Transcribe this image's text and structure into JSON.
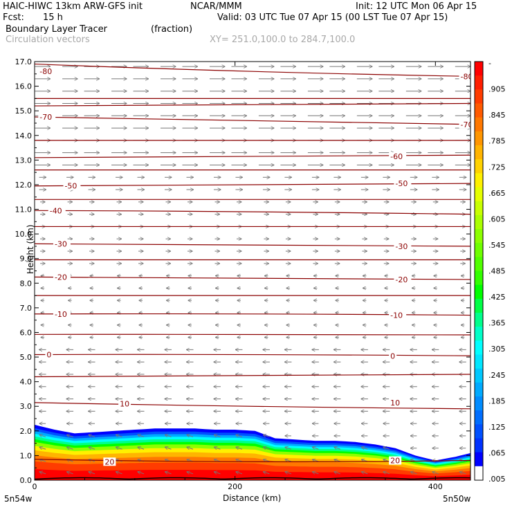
{
  "header": {
    "model": "HAIC-HIWC 13km ARW-GFS init",
    "org": "NCAR/MMM",
    "init": "Init: 12 UTC Mon 06 Apr 15",
    "fcst_label": "Fcst:",
    "fcst_value": "15 h",
    "valid": "Valid: 03 UTC Tue 07 Apr 15 (00 LST Tue 07 Apr 15)",
    "field": "Boundary Layer Tracer",
    "field_units": "(fraction)",
    "vectors": "Circulation vectors",
    "xy": "XY= 251.0,100.0 to 284.7,100.0"
  },
  "chart_data": {
    "type": "heatmap",
    "title": "Boundary Layer Tracer",
    "xlabel": "Distance (km)",
    "ylabel": "Height (km)",
    "xlim": [
      0,
      435
    ],
    "ylim": [
      0,
      17
    ],
    "x_ticks": [
      {
        "v": 0,
        "label": "0"
      },
      {
        "v": 200,
        "label": "200"
      },
      {
        "v": 400,
        "label": "400"
      }
    ],
    "x_end_labels": {
      "left": "5n54w",
      "right": "5n50w"
    },
    "y_ticks": [
      {
        "v": 0,
        "label": "0.0"
      },
      {
        "v": 1,
        "label": "1.0"
      },
      {
        "v": 2,
        "label": "2.0"
      },
      {
        "v": 3,
        "label": "3.0"
      },
      {
        "v": 4,
        "label": "4.0"
      },
      {
        "v": 5,
        "label": "5.0"
      },
      {
        "v": 6,
        "label": "6.0"
      },
      {
        "v": 7,
        "label": "7.0"
      },
      {
        "v": 8,
        "label": "8.0"
      },
      {
        "v": 9,
        "label": "9.0"
      },
      {
        "v": 10,
        "label": "10.0"
      },
      {
        "v": 11,
        "label": "11.0"
      },
      {
        "v": 12,
        "label": "12.0"
      },
      {
        "v": 13,
        "label": "13.0"
      },
      {
        "v": 14,
        "label": "14.0"
      },
      {
        "v": 15,
        "label": "15.0"
      },
      {
        "v": 16,
        "label": "16.0"
      },
      {
        "v": 17,
        "label": "17.0"
      }
    ],
    "colorbar": {
      "labels": [
        "-",
        ".905",
        ".845",
        ".785",
        ".725",
        ".665",
        ".605",
        ".545",
        ".485",
        ".425",
        ".365",
        ".305",
        ".245",
        ".185",
        ".125",
        ".065",
        ".005"
      ],
      "colors": [
        "#ff0000",
        "#ff1e00",
        "#ff3c00",
        "#ff5a00",
        "#ff7800",
        "#ff9600",
        "#ffb400",
        "#ffd200",
        "#fff000",
        "#e6ff00",
        "#c8ff00",
        "#aaff00",
        "#8cff00",
        "#6eff00",
        "#50ff00",
        "#32ff00",
        "#00ff00",
        "#00ff46",
        "#00ff8c",
        "#00ffc8",
        "#00ffff",
        "#00e6ff",
        "#00c8ff",
        "#00aaff",
        "#008cff",
        "#006eff",
        "#0050ff",
        "#0032ff",
        "#0000ff",
        "#ffffff"
      ]
    },
    "tracer_top_km": {
      "x": [
        0,
        20,
        40,
        60,
        80,
        100,
        120,
        140,
        160,
        180,
        200,
        220,
        240,
        260,
        280,
        300,
        320,
        340,
        360,
        380,
        400,
        420,
        435
      ],
      "y": [
        2.25,
        2.05,
        1.9,
        1.95,
        2.0,
        2.05,
        2.1,
        2.1,
        2.1,
        2.05,
        2.05,
        2.0,
        1.7,
        1.65,
        1.6,
        1.6,
        1.55,
        1.45,
        1.3,
        1.0,
        0.8,
        0.95,
        1.1
      ]
    },
    "isotherms": [
      {
        "label": "-80",
        "km": [
          16.9,
          16.6,
          16.4
        ],
        "label_at": [
          [
            5,
            16.6
          ],
          [
            425,
            16.4
          ]
        ]
      },
      {
        "label": "",
        "km": [
          15.5,
          15.5,
          15.5
        ],
        "label_at": []
      },
      {
        "label": "",
        "km": [
          15.2,
          15.25,
          15.3
        ],
        "label_at": []
      },
      {
        "label": "-70",
        "km": [
          14.75,
          14.6,
          14.45
        ],
        "label_at": [
          [
            5,
            14.75
          ],
          [
            425,
            14.45
          ]
        ]
      },
      {
        "label": "",
        "km": [
          13.8,
          13.8,
          13.8
        ],
        "label_at": []
      },
      {
        "label": "-60",
        "km": [
          13.1,
          13.15,
          13.2
        ],
        "label_at": [
          [
            355,
            13.15
          ]
        ]
      },
      {
        "label": "",
        "km": [
          12.6,
          12.6,
          12.6
        ],
        "label_at": []
      },
      {
        "label": "-50",
        "km": [
          11.95,
          12.0,
          12.05
        ],
        "label_at": [
          [
            30,
            11.95
          ],
          [
            360,
            12.05
          ]
        ]
      },
      {
        "label": "",
        "km": [
          11.4,
          11.4,
          11.4
        ],
        "label_at": []
      },
      {
        "label": "-40",
        "km": [
          10.95,
          10.9,
          10.8
        ],
        "label_at": [
          [
            15,
            10.95
          ]
        ]
      },
      {
        "label": "",
        "km": [
          10.3,
          10.3,
          10.3
        ],
        "label_at": []
      },
      {
        "label": "-30",
        "km": [
          9.6,
          9.55,
          9.5
        ],
        "label_at": [
          [
            20,
            9.6
          ],
          [
            360,
            9.5
          ]
        ]
      },
      {
        "label": "",
        "km": [
          8.95,
          8.95,
          8.95
        ],
        "label_at": []
      },
      {
        "label": "-20",
        "km": [
          8.25,
          8.2,
          8.15
        ],
        "label_at": [
          [
            20,
            8.25
          ],
          [
            360,
            8.15
          ]
        ]
      },
      {
        "label": "",
        "km": [
          7.5,
          7.5,
          7.5
        ],
        "label_at": []
      },
      {
        "label": "-10",
        "km": [
          6.75,
          6.75,
          6.7
        ],
        "label_at": [
          [
            20,
            6.75
          ],
          [
            355,
            6.7
          ]
        ]
      },
      {
        "label": "",
        "km": [
          5.92,
          5.92,
          5.9
        ],
        "label_at": []
      },
      {
        "label": "0",
        "km": [
          5.1,
          5.1,
          5.05
        ],
        "label_at": [
          [
            12,
            5.1
          ],
          [
            355,
            5.05
          ]
        ]
      },
      {
        "label": "",
        "km": [
          4.2,
          4.25,
          4.3
        ],
        "label_at": []
      },
      {
        "label": "10",
        "km": [
          3.15,
          3.0,
          2.9
        ],
        "label_at": [
          [
            85,
            3.1
          ],
          [
            355,
            3.15
          ]
        ]
      },
      {
        "label": "20",
        "km": [
          0.85,
          0.75,
          0.8
        ],
        "label_at": [
          [
            70,
            0.75
          ],
          [
            355,
            0.8
          ]
        ]
      }
    ]
  }
}
